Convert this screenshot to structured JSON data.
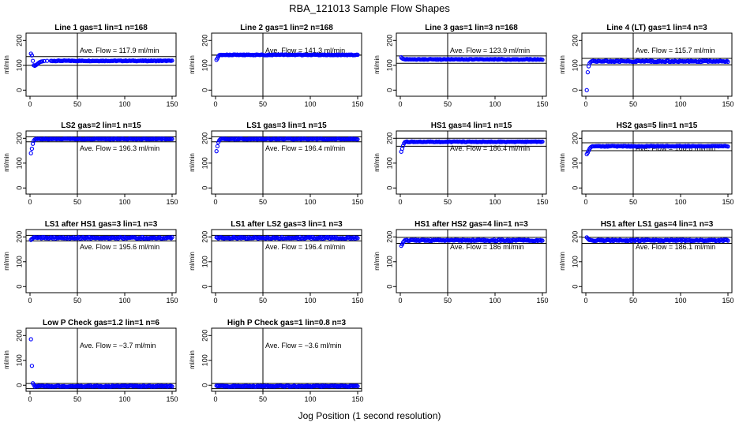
{
  "figure": {
    "title": "RBA_121013  Sample Flow Shapes",
    "xlabel": "Jog Position (1 second resolution)"
  },
  "chart_data": [
    {
      "type": "scatter",
      "title": "Line 1 gas=1 lin=1 n=168",
      "ylabel": "ml/min",
      "flow_label": "Ave. Flow =  117.9  ml/min",
      "ave_flow": 117.9,
      "band": [
        100,
        135
      ],
      "vline_x": 50,
      "xlim": [
        0,
        150
      ],
      "ylim": [
        -15,
        220
      ],
      "x_ticks": [
        0,
        50,
        100,
        150
      ],
      "y_ticks": [
        0,
        100,
        200
      ],
      "points": [
        [
          1,
          147
        ],
        [
          2,
          140
        ],
        [
          3,
          118
        ],
        [
          4,
          100
        ],
        [
          5,
          98
        ],
        [
          6,
          100
        ],
        [
          7,
          103
        ],
        [
          8,
          106
        ],
        [
          9,
          109
        ],
        [
          10,
          112
        ],
        [
          11,
          114
        ],
        [
          12,
          115
        ],
        [
          13,
          116
        ],
        [
          15,
          117
        ],
        [
          18,
          118
        ],
        [
          22,
          118
        ]
      ],
      "steady": {
        "from": 23,
        "to": 150,
        "value": 118,
        "jitter": 1.5
      }
    },
    {
      "type": "scatter",
      "title": "Line 2 gas=1 lin=2 n=168",
      "ylabel": "ml/min",
      "flow_label": "Ave. Flow =  141.3  ml/min",
      "ave_flow": 141.3,
      "band": [
        141,
        141
      ],
      "vline_x": 50,
      "xlim": [
        0,
        150
      ],
      "ylim": [
        -15,
        220
      ],
      "x_ticks": [
        0,
        50,
        100,
        150
      ],
      "y_ticks": [
        0,
        100,
        200
      ],
      "points": [
        [
          1,
          122
        ],
        [
          2,
          128
        ],
        [
          3,
          136
        ],
        [
          4,
          141
        ],
        [
          5,
          142
        ],
        [
          6,
          142
        ]
      ],
      "steady": {
        "from": 7,
        "to": 150,
        "value": 142,
        "jitter": 1.5
      }
    },
    {
      "type": "scatter",
      "title": "Line 3 gas=1 lin=3 n=168",
      "ylabel": "ml/min",
      "flow_label": "Ave. Flow =  123.9  ml/min",
      "ave_flow": 123.9,
      "band": [
        108,
        138
      ],
      "vline_x": 50,
      "xlim": [
        0,
        150
      ],
      "ylim": [
        -15,
        220
      ],
      "x_ticks": [
        0,
        50,
        100,
        150
      ],
      "y_ticks": [
        0,
        100,
        200
      ],
      "points": [
        [
          1,
          132
        ],
        [
          2,
          128
        ],
        [
          3,
          126
        ],
        [
          4,
          125
        ],
        [
          5,
          124
        ]
      ],
      "steady": {
        "from": 6,
        "to": 150,
        "value": 124,
        "jitter": 1.5
      }
    },
    {
      "type": "scatter",
      "title": "Line 4 (LT) gas=1 lin=4 n=3",
      "ylabel": "ml/min",
      "flow_label": "Ave. Flow =  115.7  ml/min",
      "ave_flow": 115.7,
      "band": [
        102,
        128
      ],
      "vline_x": 50,
      "xlim": [
        0,
        150
      ],
      "ylim": [
        -15,
        220
      ],
      "x_ticks": [
        0,
        50,
        100,
        150
      ],
      "y_ticks": [
        0,
        100,
        200
      ],
      "points": [
        [
          1,
          0
        ],
        [
          2,
          72
        ],
        [
          3,
          96
        ],
        [
          4,
          108
        ],
        [
          5,
          113
        ],
        [
          6,
          116
        ],
        [
          7,
          117
        ],
        [
          8,
          118
        ],
        [
          9,
          116
        ],
        [
          10,
          117
        ]
      ],
      "steady": {
        "from": 11,
        "to": 150,
        "value": 116,
        "jitter": 2.5
      }
    },
    {
      "type": "scatter",
      "title": "LS2 gas=2 lin=1 n=15",
      "ylabel": "ml/min",
      "flow_label": "Ave. Flow =  196.3  ml/min",
      "ave_flow": 196.3,
      "band": [
        186,
        206
      ],
      "vline_x": 50,
      "xlim": [
        0,
        150
      ],
      "ylim": [
        -15,
        220
      ],
      "x_ticks": [
        0,
        50,
        100,
        150
      ],
      "y_ticks": [
        0,
        100,
        200
      ],
      "points": [
        [
          1,
          140
        ],
        [
          2,
          158
        ],
        [
          3,
          178
        ],
        [
          4,
          190
        ],
        [
          5,
          195
        ],
        [
          6,
          197
        ]
      ],
      "steady": {
        "from": 7,
        "to": 150,
        "value": 197,
        "jitter": 1.5
      }
    },
    {
      "type": "scatter",
      "title": "LS1 gas=3 lin=1 n=15",
      "ylabel": "ml/min",
      "flow_label": "Ave. Flow =  196.4  ml/min",
      "ave_flow": 196.4,
      "band": [
        186,
        206
      ],
      "vline_x": 50,
      "xlim": [
        0,
        150
      ],
      "ylim": [
        -15,
        220
      ],
      "x_ticks": [
        0,
        50,
        100,
        150
      ],
      "y_ticks": [
        0,
        100,
        200
      ],
      "points": [
        [
          1,
          148
        ],
        [
          2,
          168
        ],
        [
          3,
          184
        ],
        [
          4,
          192
        ],
        [
          5,
          196
        ]
      ],
      "steady": {
        "from": 6,
        "to": 150,
        "value": 197,
        "jitter": 1.5
      }
    },
    {
      "type": "scatter",
      "title": "HS1 gas=4 lin=1 n=15",
      "ylabel": "ml/min",
      "flow_label": "Ave. Flow =  186.4  ml/min",
      "ave_flow": 186.4,
      "band": [
        168,
        200
      ],
      "vline_x": 50,
      "xlim": [
        0,
        150
      ],
      "ylim": [
        -15,
        220
      ],
      "x_ticks": [
        0,
        50,
        100,
        150
      ],
      "y_ticks": [
        0,
        100,
        200
      ],
      "points": [
        [
          1,
          146
        ],
        [
          2,
          158
        ],
        [
          3,
          170
        ],
        [
          4,
          180
        ],
        [
          5,
          185
        ],
        [
          6,
          186
        ]
      ],
      "steady": {
        "from": 7,
        "to": 150,
        "value": 186,
        "jitter": 1.5
      }
    },
    {
      "type": "scatter",
      "title": "HS2 gas=5 lin=1 n=15",
      "ylabel": "ml/min",
      "flow_label": "Ave. Flow =  168.6  ml/min",
      "ave_flow": 168.6,
      "band": [
        150,
        182
      ],
      "vline_x": 50,
      "xlim": [
        0,
        150
      ],
      "ylim": [
        -15,
        220
      ],
      "x_ticks": [
        0,
        50,
        100,
        150
      ],
      "y_ticks": [
        0,
        100,
        200
      ],
      "points": [
        [
          1,
          136
        ],
        [
          2,
          142
        ],
        [
          3,
          150
        ],
        [
          4,
          158
        ],
        [
          5,
          163
        ],
        [
          6,
          166
        ],
        [
          7,
          168
        ]
      ],
      "steady": {
        "from": 8,
        "to": 150,
        "value": 168,
        "jitter": 1.5
      }
    },
    {
      "type": "scatter",
      "title": "LS1 after HS1 gas=3 lin=1 n=3",
      "ylabel": "ml/min",
      "flow_label": "Ave. Flow =  195.6  ml/min",
      "ave_flow": 195.6,
      "band": [
        184,
        206
      ],
      "vline_x": 50,
      "xlim": [
        0,
        150
      ],
      "ylim": [
        -15,
        220
      ],
      "x_ticks": [
        0,
        50,
        100,
        150
      ],
      "y_ticks": [
        0,
        100,
        200
      ],
      "points": [
        [
          1,
          188
        ],
        [
          2,
          192
        ],
        [
          3,
          194
        ]
      ],
      "steady": {
        "from": 4,
        "to": 150,
        "value": 196,
        "jitter": 3
      }
    },
    {
      "type": "scatter",
      "title": "LS1 after LS2 gas=3 lin=1 n=3",
      "ylabel": "ml/min",
      "flow_label": "Ave. Flow =  196.4  ml/min",
      "ave_flow": 196.4,
      "band": [
        184,
        206
      ],
      "vline_x": 50,
      "xlim": [
        0,
        150
      ],
      "ylim": [
        -15,
        220
      ],
      "x_ticks": [
        0,
        50,
        100,
        150
      ],
      "y_ticks": [
        0,
        100,
        200
      ],
      "points": [
        [
          1,
          198
        ],
        [
          2,
          197
        ]
      ],
      "steady": {
        "from": 3,
        "to": 150,
        "value": 196,
        "jitter": 3
      }
    },
    {
      "type": "scatter",
      "title": "HS1 after HS2 gas=4 lin=1 n=3",
      "ylabel": "ml/min",
      "flow_label": "Ave. Flow =  186  ml/min",
      "ave_flow": 186,
      "band": [
        174,
        198
      ],
      "vline_x": 50,
      "xlim": [
        0,
        150
      ],
      "ylim": [
        -15,
        220
      ],
      "x_ticks": [
        0,
        50,
        100,
        150
      ],
      "y_ticks": [
        0,
        100,
        200
      ],
      "points": [
        [
          1,
          164
        ],
        [
          2,
          170
        ],
        [
          3,
          178
        ],
        [
          4,
          183
        ]
      ],
      "steady": {
        "from": 5,
        "to": 150,
        "value": 186,
        "jitter": 2.5
      }
    },
    {
      "type": "scatter",
      "title": "HS1 after LS1 gas=4 lin=1 n=3",
      "ylabel": "ml/min",
      "flow_label": "Ave. Flow =  186.1  ml/min",
      "ave_flow": 186.1,
      "band": [
        174,
        198
      ],
      "vline_x": 50,
      "xlim": [
        0,
        150
      ],
      "ylim": [
        -15,
        220
      ],
      "x_ticks": [
        0,
        50,
        100,
        150
      ],
      "y_ticks": [
        0,
        100,
        200
      ],
      "points": [
        [
          1,
          198
        ],
        [
          2,
          194
        ],
        [
          3,
          190
        ]
      ],
      "steady": {
        "from": 4,
        "to": 150,
        "value": 186,
        "jitter": 2.5
      }
    },
    {
      "type": "scatter",
      "title": "Low P Check gas=1.2 lin=1 n=6",
      "ylabel": "ml/min",
      "flow_label": "Ave. Flow =  −3.7  ml/min",
      "ave_flow": -3.7,
      "band": [
        -14,
        7
      ],
      "vline_x": 50,
      "xlim": [
        0,
        150
      ],
      "ylim": [
        -15,
        220
      ],
      "x_ticks": [
        0,
        50,
        100,
        150
      ],
      "y_ticks": [
        0,
        100,
        200
      ],
      "points": [
        [
          1,
          185
        ],
        [
          2,
          78
        ],
        [
          3,
          8
        ],
        [
          4,
          2
        ]
      ],
      "steady": {
        "from": 5,
        "to": 150,
        "value": -4,
        "jitter": 2
      }
    },
    {
      "type": "scatter",
      "title": "High P Check gas=1 lin=0.8 n=3",
      "ylabel": "ml/min",
      "flow_label": "Ave. Flow =  −3.6  ml/min",
      "ave_flow": -3.6,
      "band": [
        -14,
        7
      ],
      "vline_x": 50,
      "xlim": [
        0,
        150
      ],
      "ylim": [
        -15,
        220
      ],
      "x_ticks": [
        0,
        50,
        100,
        150
      ],
      "y_ticks": [
        0,
        100,
        200
      ],
      "points": [
        [
          1,
          -2
        ],
        [
          2,
          -4
        ]
      ],
      "steady": {
        "from": 3,
        "to": 150,
        "value": -4,
        "jitter": 2
      }
    }
  ],
  "colors": {
    "points": "#0000ff",
    "axes": "#000000"
  }
}
